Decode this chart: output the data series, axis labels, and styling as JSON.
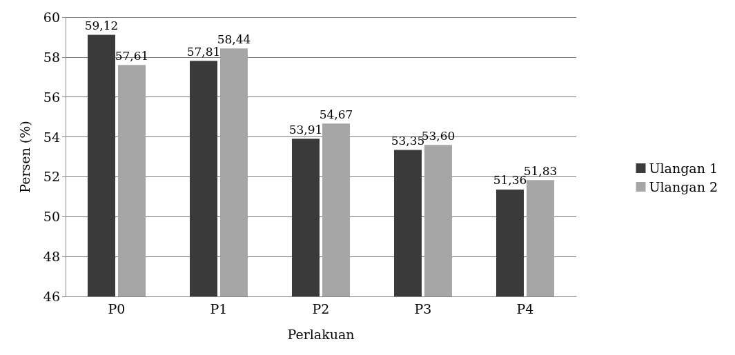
{
  "chart_data": {
    "type": "bar",
    "xlabel": "Perlakuan",
    "ylabel": "Persen (%)",
    "categories": [
      "P0",
      "P1",
      "P2",
      "P3",
      "P4"
    ],
    "series": [
      {
        "name": "Ulangan 1",
        "color": "#3a3a3a",
        "values": [
          59.12,
          57.81,
          53.91,
          53.35,
          51.36
        ],
        "value_labels": [
          "59,12",
          "57,81",
          "53,91",
          "53,35",
          "51,36"
        ]
      },
      {
        "name": "Ulangan 2",
        "color": "#a6a6a6",
        "values": [
          57.61,
          58.44,
          54.67,
          53.6,
          51.83
        ],
        "value_labels": [
          "57,61",
          "58,44",
          "54,67",
          "53,60",
          "51,83"
        ]
      }
    ],
    "ylim": [
      46,
      60
    ],
    "yticks": [
      46,
      48,
      50,
      52,
      54,
      56,
      58,
      60
    ],
    "grid": "y",
    "legend": "right"
  }
}
